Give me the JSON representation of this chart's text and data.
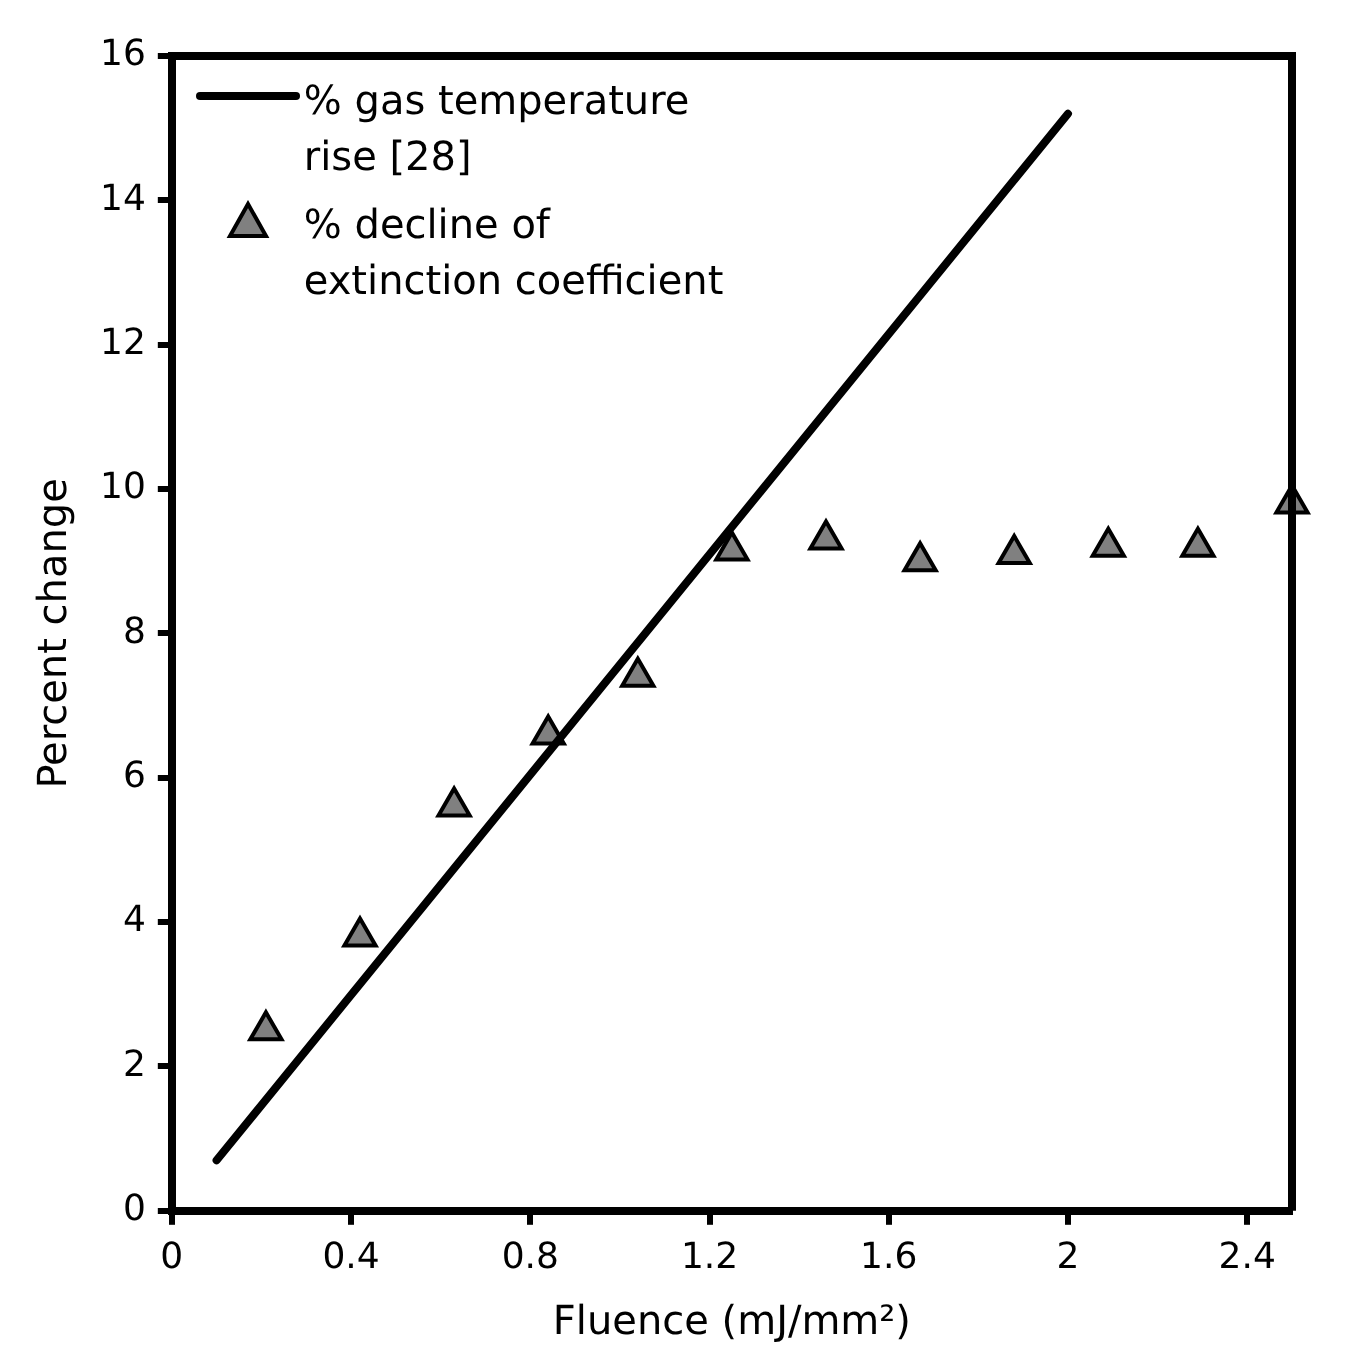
{
  "chart_data": {
    "type": "scatter",
    "xlabel": "Fluence (mJ/mm²)",
    "ylabel": "Percent change",
    "xlim": [
      0,
      2.5
    ],
    "xticks": [
      0,
      0.4,
      0.8,
      1.2,
      1.6,
      2,
      2.4
    ],
    "ylim": [
      0,
      16
    ],
    "yticks": [
      0,
      2,
      4,
      6,
      8,
      10,
      12,
      14,
      16
    ],
    "grid": false,
    "legend": "top left",
    "series": [
      {
        "name": "% gas temperature rise [28]",
        "type": "line",
        "color": "#000000",
        "marker": "none",
        "line_style": "solid",
        "x": [
          0.1,
          2.0
        ],
        "values": [
          0.7,
          15.2
        ]
      },
      {
        "name": "% decline of extinction coefficient",
        "type": "scatter",
        "color": "#808080",
        "marker": "triangle",
        "x": [
          0.21,
          0.42,
          0.63,
          0.84,
          1.04,
          1.25,
          1.46,
          1.67,
          1.88,
          2.09,
          2.29,
          2.5
        ],
        "values": [
          2.5,
          3.8,
          5.6,
          6.6,
          7.4,
          9.15,
          9.3,
          9.0,
          9.1,
          9.2,
          9.2,
          9.8
        ]
      }
    ]
  }
}
